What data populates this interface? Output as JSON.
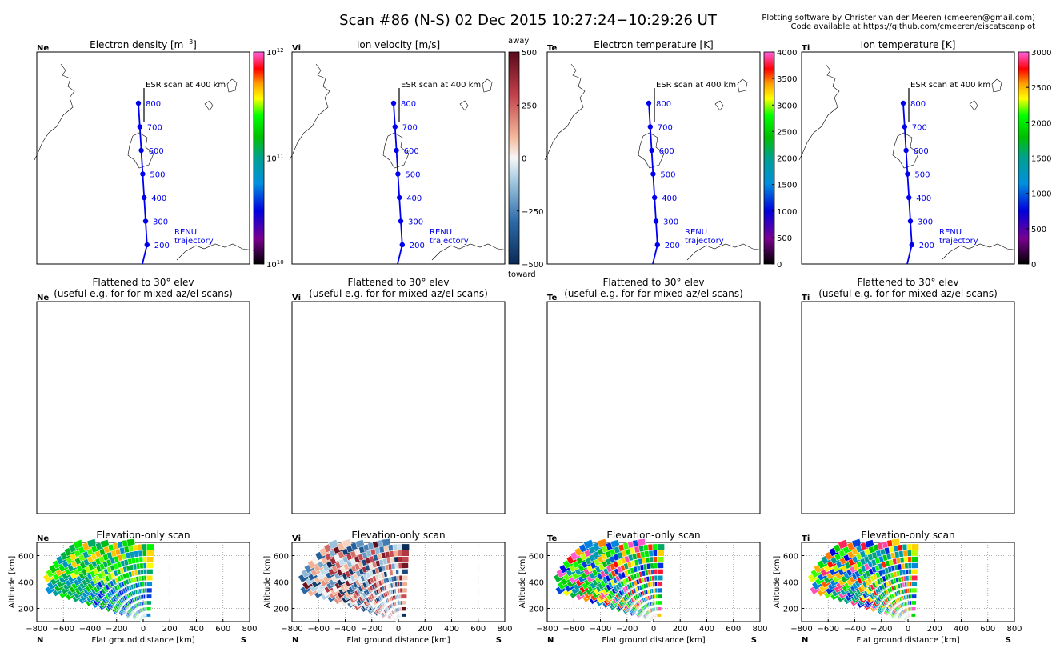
{
  "title": "Scan #86 (N-S)   02 Dec 2015 10:27:24−10:29:26 UT",
  "credit": [
    "Plotting software by Christer van der Meeren (cmeeren@gmail.com)",
    "Code available at https://github.com/cmeeren/eiscatscanplot"
  ],
  "panels": [
    {
      "key": "Ne",
      "title_base": "Electron density [m",
      "title_sup": "−3",
      "title_end": "]",
      "colorbar": {
        "scale": "rainbow",
        "log": true,
        "ticks": [
          {
            "base": "10",
            "exp": "10",
            "v": 10
          },
          {
            "base": "10",
            "exp": "11",
            "v": 11
          },
          {
            "base": "10",
            "exp": "12",
            "v": 12
          }
        ],
        "min": 10,
        "max": 12
      }
    },
    {
      "key": "Vi",
      "title": "Ion velocity [m/s]",
      "colorbar": {
        "scale": "diverging",
        "ticks": [
          "500",
          "250",
          "0",
          "−250",
          "−500"
        ],
        "values": [
          500,
          250,
          0,
          -250,
          -500
        ],
        "min": -500,
        "max": 500,
        "top_label": "away",
        "bottom_label": "toward"
      }
    },
    {
      "key": "Te",
      "title": "Electron temperature [K]",
      "colorbar": {
        "scale": "rainbow",
        "ticks": [
          "4000",
          "3500",
          "3000",
          "2500",
          "2000",
          "1500",
          "1000",
          "500",
          "0"
        ],
        "values": [
          4000,
          3500,
          3000,
          2500,
          2000,
          1500,
          1000,
          500,
          0
        ],
        "min": 0,
        "max": 4000
      }
    },
    {
      "key": "Ti",
      "title": "Ion temperature [K]",
      "colorbar": {
        "scale": "rainbow",
        "ticks": [
          "3000",
          "2500",
          "2000",
          "1500",
          "1000",
          "500",
          "0"
        ],
        "values": [
          3000,
          2500,
          2000,
          1500,
          1000,
          500,
          0
        ],
        "min": 0,
        "max": 3000
      }
    }
  ],
  "map": {
    "esr_label": "ESR scan at 400 km",
    "trajectory_label": [
      "RENU",
      "trajectory"
    ],
    "altitude_markers": [
      "800",
      "700",
      "600",
      "500",
      "400",
      "300",
      "200"
    ]
  },
  "flattened": {
    "title": [
      "Flattened to 30° elev",
      "(useful e.g. for for mixed az/el scans)"
    ]
  },
  "elevation": {
    "title": "Elevation-only scan",
    "xlabel": "Flat ground distance [km]",
    "ylabel": "Altitude [km]",
    "xticks": [
      "−800",
      "−600",
      "−400",
      "−200",
      "0",
      "200",
      "400",
      "600",
      "800"
    ],
    "yticks": [
      "200",
      "400",
      "600"
    ],
    "left_dir": "N",
    "right_dir": "S"
  },
  "chart_data": [
    {
      "type": "scatter",
      "title": "Electron density [m−3] — map",
      "series": [
        {
          "name": "RENU trajectory",
          "x": [],
          "y": []
        }
      ],
      "annotations": [
        "ESR scan at 400 km",
        "800",
        "700",
        "600",
        "500",
        "400",
        "300",
        "200"
      ]
    },
    {
      "type": "heatmap",
      "title": "Elevation-only scan",
      "xlabel": "Flat ground distance [km]",
      "ylabel": "Altitude [km]",
      "xlim": [
        -800,
        800
      ],
      "ylim": [
        100,
        700
      ],
      "grid": true,
      "note_values": "fan of cells spanning x −700..150 km, altitude 100..700 km"
    }
  ]
}
